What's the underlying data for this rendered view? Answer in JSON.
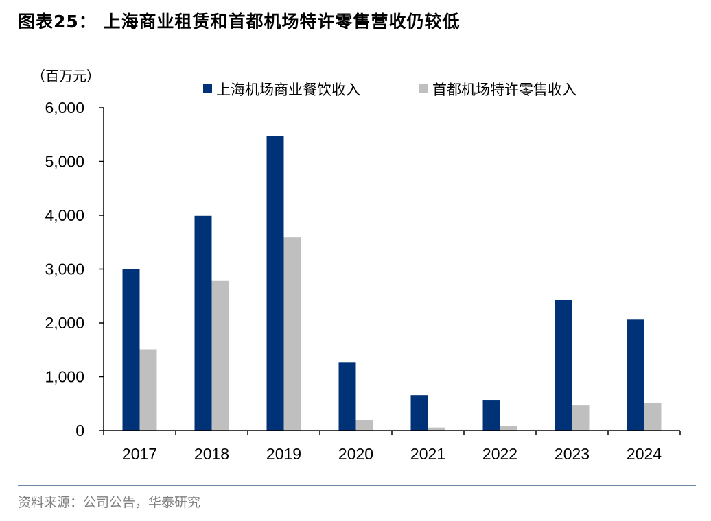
{
  "title": "图表25：  上海商业租赁和首都机场特许零售营收仍较低",
  "source": "资料来源：公司公告，华泰研究",
  "colors": {
    "series1": "#003278",
    "series2": "#bfbfbf",
    "rule": "#6d87a8",
    "axis": "#000000"
  },
  "chart_data": {
    "type": "bar",
    "unit_label": "（百万元）",
    "categories": [
      "2017",
      "2018",
      "2019",
      "2020",
      "2021",
      "2022",
      "2023",
      "2024"
    ],
    "series": [
      {
        "name": "上海机场商业餐饮收入",
        "values": [
          3000,
          3990,
          5470,
          1270,
          660,
          560,
          2430,
          2060
        ]
      },
      {
        "name": "首都机场特许零售收入",
        "values": [
          1510,
          2780,
          3590,
          200,
          55,
          80,
          470,
          510
        ]
      }
    ],
    "ylim": [
      0,
      6000
    ],
    "yticks": [
      0,
      1000,
      2000,
      3000,
      4000,
      5000,
      6000
    ],
    "ytick_labels": [
      "0",
      "1,000",
      "2,000",
      "3,000",
      "4,000",
      "5,000",
      "6,000"
    ],
    "grid": false,
    "legend_position": "top"
  }
}
